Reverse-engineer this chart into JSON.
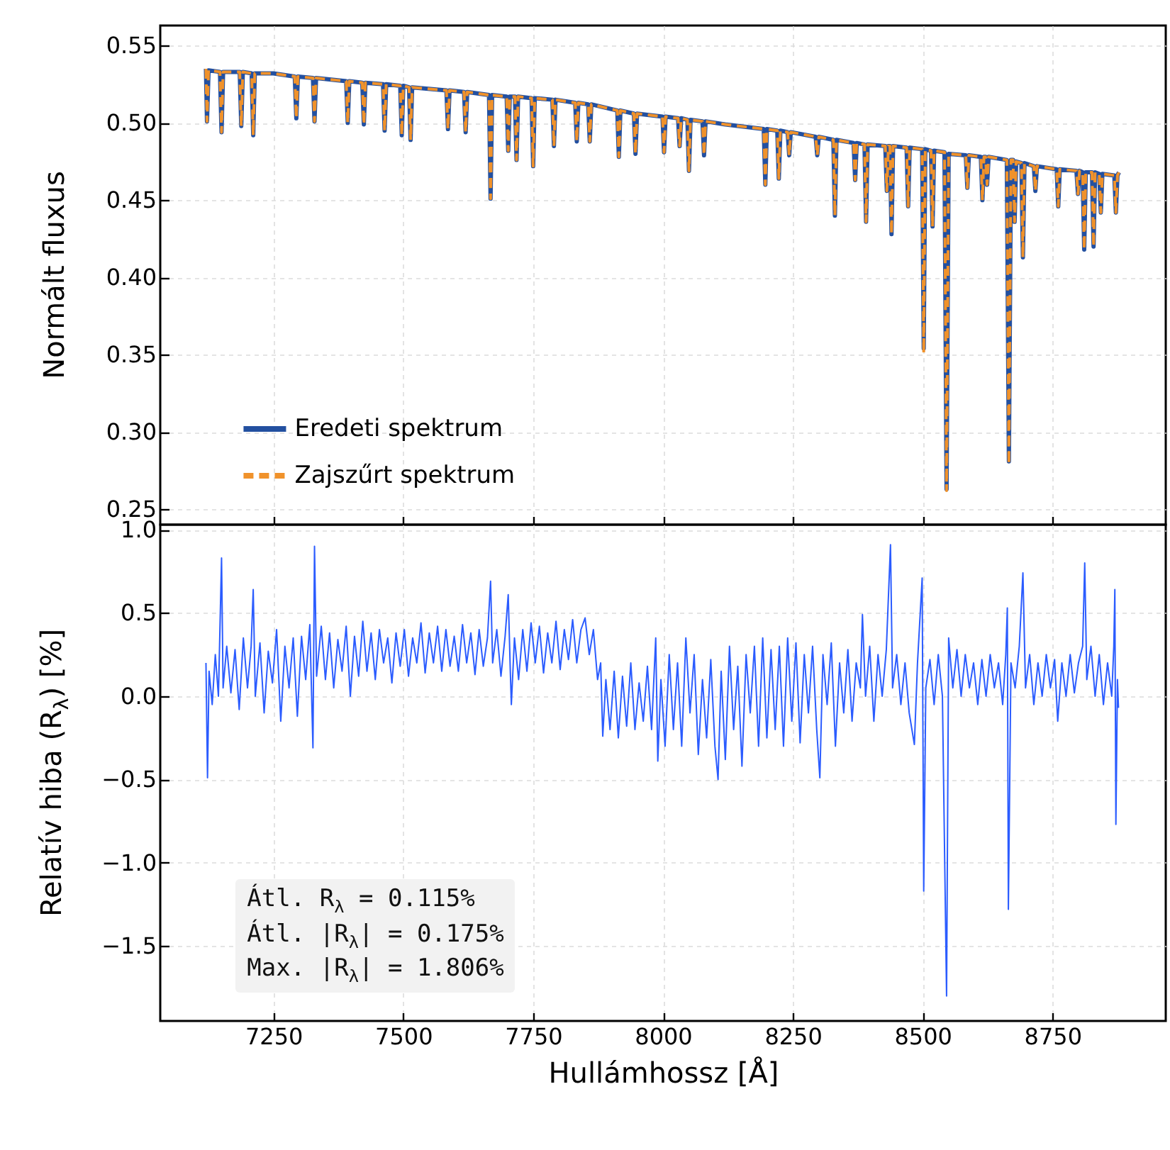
{
  "chart_data": [
    {
      "type": "line",
      "ylabel": "Normált fluxus",
      "legend": "bottom left",
      "grid": true,
      "tick_labels": "y",
      "xlim": [
        7032,
        8968
      ],
      "xticks": [
        7250,
        7500,
        7750,
        8000,
        8250,
        8500,
        8750
      ],
      "ylim": [
        0.24,
        0.563
      ],
      "yticks": [
        {
          "value": 0.25,
          "label": "0.25"
        },
        {
          "value": 0.3,
          "label": "0.30"
        },
        {
          "value": 0.35,
          "label": "0.35"
        },
        {
          "value": 0.4,
          "label": "0.40"
        },
        {
          "value": 0.45,
          "label": "0.45"
        },
        {
          "value": 0.5,
          "label": "0.50"
        },
        {
          "value": 0.55,
          "label": "0.55"
        }
      ],
      "x": [
        7120,
        7122,
        7125,
        7147,
        7150,
        7153,
        7185,
        7188,
        7191,
        7208,
        7211,
        7214,
        7250,
        7291,
        7294,
        7297,
        7326,
        7329,
        7332,
        7390,
        7393,
        7396,
        7421,
        7424,
        7427,
        7461,
        7464,
        7467,
        7494,
        7497,
        7500,
        7511,
        7514,
        7517,
        7583,
        7586,
        7589,
        7617,
        7620,
        7623,
        7665,
        7668,
        7671,
        7699,
        7702,
        7705,
        7715,
        7718,
        7721,
        7747,
        7750,
        7753,
        7787,
        7790,
        7793,
        7831,
        7834,
        7837,
        7856,
        7859,
        7862,
        7912,
        7915,
        7918,
        7944,
        7947,
        7950,
        7999,
        8002,
        8005,
        8029,
        8032,
        8035,
        8047,
        8050,
        8053,
        8076,
        8079,
        8082,
        8120,
        8194,
        8197,
        8200,
        8220,
        8223,
        8226,
        8240,
        8243,
        8246,
        8294,
        8297,
        8300,
        8328,
        8331,
        8334,
        8367,
        8370,
        8373,
        8388,
        8391,
        8394,
        8428,
        8431,
        8434,
        8437,
        8440,
        8443,
        8469,
        8472,
        8475,
        8499,
        8502,
        8505,
        8516,
        8519,
        8522,
        8542,
        8546,
        8550,
        8583,
        8586,
        8589,
        8612,
        8615,
        8618,
        8621,
        8624,
        8627,
        8662,
        8666,
        8670,
        8674,
        8677,
        8680,
        8690,
        8693,
        8696,
        8714,
        8717,
        8720,
        8758,
        8761,
        8764,
        8796,
        8799,
        8802,
        8808,
        8811,
        8814,
        8826,
        8829,
        8832,
        8840,
        8843,
        8846,
        8869,
        8872,
        8875,
        8878
      ],
      "series": [
        {
          "name": "Eredeti spektrum",
          "color": "#2350a0",
          "line_style": "solid",
          "values": [
            0.535,
            0.501,
            0.534,
            0.533,
            0.494,
            0.533,
            0.533,
            0.498,
            0.533,
            0.532,
            0.492,
            0.532,
            0.532,
            0.53,
            0.503,
            0.53,
            0.529,
            0.501,
            0.529,
            0.527,
            0.5,
            0.527,
            0.526,
            0.499,
            0.526,
            0.525,
            0.495,
            0.525,
            0.524,
            0.492,
            0.524,
            0.523,
            0.489,
            0.523,
            0.521,
            0.496,
            0.521,
            0.52,
            0.494,
            0.52,
            0.518,
            0.451,
            0.518,
            0.517,
            0.482,
            0.517,
            0.517,
            0.476,
            0.517,
            0.516,
            0.472,
            0.516,
            0.515,
            0.485,
            0.515,
            0.513,
            0.488,
            0.513,
            0.512,
            0.488,
            0.512,
            0.508,
            0.478,
            0.508,
            0.506,
            0.48,
            0.506,
            0.504,
            0.481,
            0.504,
            0.503,
            0.485,
            0.503,
            0.502,
            0.469,
            0.502,
            0.501,
            0.479,
            0.501,
            0.499,
            0.496,
            0.46,
            0.496,
            0.495,
            0.464,
            0.495,
            0.494,
            0.479,
            0.494,
            0.491,
            0.479,
            0.491,
            0.489,
            0.44,
            0.489,
            0.487,
            0.463,
            0.487,
            0.486,
            0.436,
            0.486,
            0.485,
            0.456,
            0.485,
            0.485,
            0.428,
            0.485,
            0.484,
            0.446,
            0.484,
            0.483,
            0.354,
            0.483,
            0.482,
            0.433,
            0.482,
            0.481,
            0.263,
            0.48,
            0.479,
            0.458,
            0.479,
            0.478,
            0.45,
            0.478,
            0.478,
            0.46,
            0.478,
            0.476,
            0.281,
            0.476,
            0.476,
            0.436,
            0.475,
            0.474,
            0.413,
            0.474,
            0.472,
            0.456,
            0.472,
            0.47,
            0.446,
            0.47,
            0.469,
            0.454,
            0.469,
            0.468,
            0.418,
            0.468,
            0.468,
            0.42,
            0.468,
            0.467,
            0.442,
            0.467,
            0.466,
            0.442,
            0.466,
            0.468
          ]
        },
        {
          "name": "Zajszűrt spektrum",
          "color": "#f0922b",
          "line_style": "dashed",
          "values": [
            0.535,
            0.501,
            0.534,
            0.533,
            0.494,
            0.533,
            0.533,
            0.498,
            0.533,
            0.532,
            0.492,
            0.532,
            0.532,
            0.53,
            0.503,
            0.53,
            0.529,
            0.501,
            0.529,
            0.527,
            0.5,
            0.527,
            0.526,
            0.499,
            0.526,
            0.525,
            0.495,
            0.525,
            0.524,
            0.492,
            0.524,
            0.523,
            0.489,
            0.523,
            0.521,
            0.496,
            0.521,
            0.52,
            0.494,
            0.52,
            0.518,
            0.451,
            0.518,
            0.517,
            0.482,
            0.517,
            0.517,
            0.476,
            0.517,
            0.516,
            0.472,
            0.516,
            0.515,
            0.485,
            0.515,
            0.513,
            0.488,
            0.513,
            0.512,
            0.488,
            0.512,
            0.508,
            0.478,
            0.508,
            0.506,
            0.48,
            0.506,
            0.504,
            0.481,
            0.504,
            0.503,
            0.485,
            0.503,
            0.502,
            0.469,
            0.502,
            0.501,
            0.479,
            0.501,
            0.499,
            0.496,
            0.46,
            0.496,
            0.495,
            0.464,
            0.495,
            0.494,
            0.479,
            0.494,
            0.491,
            0.479,
            0.491,
            0.489,
            0.44,
            0.489,
            0.487,
            0.463,
            0.487,
            0.486,
            0.436,
            0.486,
            0.485,
            0.456,
            0.485,
            0.485,
            0.428,
            0.485,
            0.484,
            0.446,
            0.484,
            0.483,
            0.351,
            0.483,
            0.482,
            0.433,
            0.482,
            0.481,
            0.262,
            0.48,
            0.479,
            0.458,
            0.479,
            0.478,
            0.45,
            0.478,
            0.478,
            0.46,
            0.478,
            0.476,
            0.279,
            0.476,
            0.476,
            0.436,
            0.475,
            0.474,
            0.413,
            0.474,
            0.472,
            0.456,
            0.472,
            0.47,
            0.446,
            0.47,
            0.469,
            0.454,
            0.469,
            0.468,
            0.418,
            0.468,
            0.468,
            0.42,
            0.468,
            0.467,
            0.442,
            0.467,
            0.466,
            0.442,
            0.466,
            0.468
          ]
        }
      ]
    },
    {
      "type": "line",
      "xlabel": "Hullámhossz [Å]",
      "ylabel": "Relatív hiba (R$_{λ}$) [%]",
      "grid": true,
      "annotations": [
        "Átl. R$_{λ}$ = 0.115%",
        "Átl. |R$_{λ}$| = 0.175%",
        "Max. |R$_{λ}$| = 1.806%"
      ],
      "xlim": [
        7032,
        8968
      ],
      "xticks": [
        7250,
        7500,
        7750,
        8000,
        8250,
        8500,
        8750
      ],
      "ylim": [
        -1.95,
        1.03
      ],
      "yticks": [
        {
          "value": -1.5,
          "label": "−1.5"
        },
        {
          "value": -1,
          "label": "−1.0"
        },
        {
          "value": -0.5,
          "label": "−0.5"
        },
        {
          "value": 0,
          "label": "0.0"
        },
        {
          "value": 0.5,
          "label": "0.5"
        },
        {
          "value": 1,
          "label": "1.0"
        }
      ],
      "x": [
        7120,
        7123,
        7126,
        7132,
        7138,
        7144,
        7150,
        7153,
        7160,
        7168,
        7176,
        7184,
        7192,
        7200,
        7207,
        7211,
        7215,
        7224,
        7232,
        7240,
        7248,
        7256,
        7264,
        7272,
        7280,
        7288,
        7296,
        7304,
        7312,
        7320,
        7326,
        7329,
        7333,
        7342,
        7350,
        7358,
        7366,
        7374,
        7382,
        7390,
        7398,
        7406,
        7414,
        7422,
        7430,
        7438,
        7446,
        7454,
        7462,
        7470,
        7478,
        7486,
        7494,
        7502,
        7510,
        7518,
        7526,
        7534,
        7542,
        7550,
        7558,
        7566,
        7574,
        7582,
        7590,
        7598,
        7606,
        7614,
        7622,
        7630,
        7638,
        7646,
        7654,
        7662,
        7668,
        7672,
        7680,
        7688,
        7696,
        7702,
        7706,
        7708,
        7714,
        7722,
        7730,
        7738,
        7746,
        7754,
        7762,
        7770,
        7778,
        7786,
        7794,
        7802,
        7810,
        7818,
        7826,
        7834,
        7842,
        7850,
        7858,
        7866,
        7874,
        7880,
        7884,
        7890,
        7898,
        7906,
        7914,
        7922,
        7930,
        7938,
        7946,
        7954,
        7962,
        7970,
        7978,
        7986,
        7990,
        7996,
        8004,
        8012,
        8020,
        8028,
        8036,
        8044,
        8052,
        8060,
        8068,
        8076,
        8084,
        8092,
        8100,
        8106,
        8112,
        8120,
        8128,
        8136,
        8144,
        8152,
        8160,
        8168,
        8176,
        8184,
        8192,
        8200,
        8208,
        8216,
        8224,
        8232,
        8240,
        8248,
        8256,
        8264,
        8272,
        8280,
        8288,
        8296,
        8302,
        8308,
        8316,
        8324,
        8332,
        8340,
        8348,
        8356,
        8364,
        8372,
        8380,
        8384,
        8390,
        8398,
        8406,
        8414,
        8422,
        8430,
        8438,
        8442,
        8450,
        8458,
        8466,
        8474,
        8484,
        8490,
        8499,
        8502,
        8506,
        8514,
        8522,
        8530,
        8538,
        8546,
        8550,
        8558,
        8566,
        8574,
        8582,
        8590,
        8598,
        8606,
        8614,
        8622,
        8630,
        8638,
        8646,
        8654,
        8660,
        8663,
        8665,
        8670,
        8678,
        8686,
        8693,
        8698,
        8706,
        8714,
        8722,
        8730,
        8738,
        8746,
        8754,
        8760,
        8768,
        8776,
        8784,
        8792,
        8800,
        8808,
        8812,
        8816,
        8824,
        8832,
        8840,
        8848,
        8856,
        8864,
        8868,
        8870,
        8872,
        8875,
        8877
      ],
      "series": [
        {
          "color": "#2b5cff",
          "values": [
            0.2,
            -0.49,
            0.15,
            -0.05,
            0.25,
            0.0,
            0.83,
            0.05,
            0.3,
            0.02,
            0.28,
            -0.08,
            0.35,
            0.05,
            0.3,
            0.64,
            0.0,
            0.32,
            -0.1,
            0.27,
            0.08,
            0.4,
            -0.15,
            0.3,
            0.05,
            0.35,
            -0.12,
            0.36,
            0.1,
            0.43,
            -0.31,
            0.9,
            0.12,
            0.42,
            0.1,
            0.38,
            0.05,
            0.34,
            0.15,
            0.42,
            0.0,
            0.36,
            0.12,
            0.45,
            0.15,
            0.38,
            0.1,
            0.4,
            0.2,
            0.35,
            0.08,
            0.38,
            0.18,
            0.4,
            0.12,
            0.35,
            0.2,
            0.44,
            0.14,
            0.38,
            0.2,
            0.42,
            0.15,
            0.4,
            0.18,
            0.36,
            0.15,
            0.43,
            0.2,
            0.38,
            0.13,
            0.4,
            0.18,
            0.35,
            0.69,
            0.2,
            0.4,
            0.12,
            0.36,
            0.61,
            0.15,
            -0.05,
            0.35,
            0.1,
            0.4,
            0.15,
            0.44,
            0.2,
            0.42,
            0.14,
            0.38,
            0.2,
            0.45,
            0.16,
            0.4,
            0.22,
            0.46,
            0.2,
            0.4,
            0.47,
            0.25,
            0.4,
            0.1,
            0.2,
            -0.24,
            0.1,
            -0.2,
            0.15,
            -0.25,
            0.12,
            -0.18,
            0.2,
            -0.2,
            0.08,
            -0.15,
            0.18,
            -0.2,
            0.35,
            -0.39,
            0.1,
            -0.3,
            0.25,
            -0.2,
            0.2,
            -0.3,
            0.35,
            -0.1,
            0.25,
            -0.35,
            0.1,
            -0.25,
            0.22,
            -0.3,
            -0.5,
            0.15,
            -0.38,
            0.3,
            -0.2,
            0.18,
            -0.42,
            0.25,
            -0.1,
            0.3,
            -0.3,
            0.35,
            -0.25,
            0.28,
            -0.2,
            0.3,
            -0.3,
            0.35,
            -0.15,
            0.32,
            -0.28,
            0.25,
            -0.1,
            0.3,
            -0.2,
            -0.49,
            0.25,
            -0.05,
            0.32,
            -0.3,
            0.2,
            -0.1,
            0.28,
            -0.15,
            0.2,
            0.05,
            0.49,
            0.0,
            0.3,
            -0.15,
            0.25,
            0.0,
            0.28,
            0.91,
            0.05,
            0.25,
            -0.05,
            0.2,
            -0.1,
            -0.29,
            0.2,
            0.71,
            -1.17,
            0.05,
            0.22,
            -0.05,
            0.25,
            0.0,
            -1.8,
            0.35,
            0.05,
            0.28,
            0.0,
            0.25,
            0.05,
            0.2,
            -0.05,
            0.22,
            0.0,
            0.25,
            0.05,
            0.2,
            -0.05,
            0.25,
            0.53,
            -1.28,
            0.2,
            0.05,
            0.3,
            0.74,
            0.05,
            0.25,
            -0.05,
            0.2,
            0.0,
            0.25,
            0.05,
            0.22,
            -0.15,
            0.2,
            0.0,
            0.25,
            0.02,
            0.2,
            0.3,
            0.8,
            0.1,
            0.3,
            0.0,
            0.25,
            -0.05,
            0.2,
            0.0,
            0.3,
            0.64,
            -0.77,
            0.1,
            -0.07
          ]
        }
      ]
    }
  ]
}
